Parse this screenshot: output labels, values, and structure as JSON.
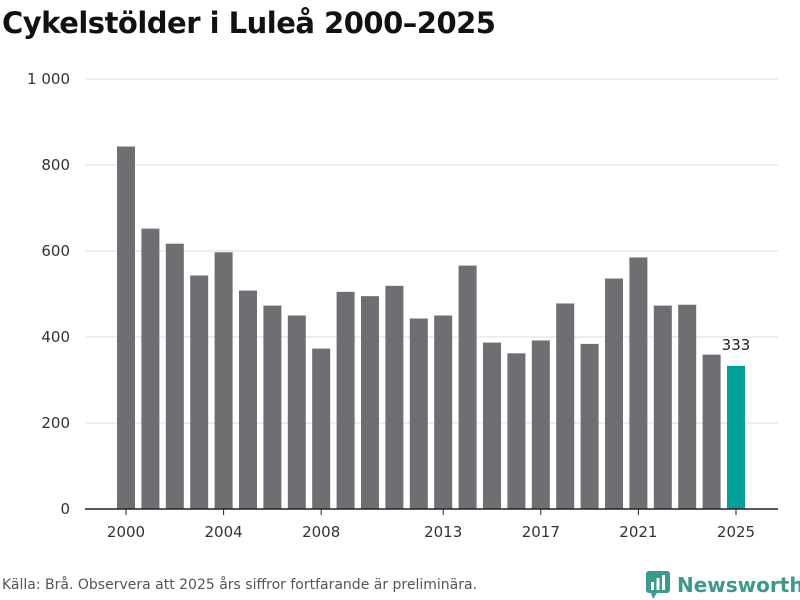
{
  "title": "Cykelstölder i Luleå 2000–2025",
  "source": "Källa: Brå. Observera att 2025 års siffror fortfarande är preliminära.",
  "brand": {
    "name": "Newsworthy",
    "icon": "newsworthy-logo-icon"
  },
  "colors": {
    "bar": "#6e6e73",
    "highlight": "#00a19a",
    "grid": "#dddddd",
    "baseline": "#222222"
  },
  "chart_data": {
    "type": "bar",
    "title": "Cykelstölder i Luleå 2000–2025",
    "xlabel": "",
    "ylabel": "",
    "ylim": [
      0,
      1000
    ],
    "yticks": [
      0,
      200,
      400,
      600,
      800,
      1000
    ],
    "ytick_labels": [
      "0",
      "200",
      "400",
      "600",
      "800",
      "1 000"
    ],
    "xtick_labels": [
      "2000",
      "2004",
      "2008",
      "2013",
      "2017",
      "2021",
      "2025"
    ],
    "grid": true,
    "categories": [
      2000,
      2001,
      2002,
      2003,
      2004,
      2005,
      2006,
      2007,
      2008,
      2009,
      2010,
      2011,
      2012,
      2013,
      2014,
      2015,
      2016,
      2017,
      2018,
      2019,
      2020,
      2021,
      2022,
      2023,
      2024,
      2025
    ],
    "values": [
      843,
      652,
      617,
      543,
      597,
      508,
      473,
      450,
      373,
      505,
      495,
      519,
      443,
      450,
      566,
      387,
      362,
      392,
      478,
      384,
      536,
      585,
      473,
      475,
      359,
      333
    ],
    "highlight": {
      "category": 2025,
      "label": "333"
    }
  }
}
